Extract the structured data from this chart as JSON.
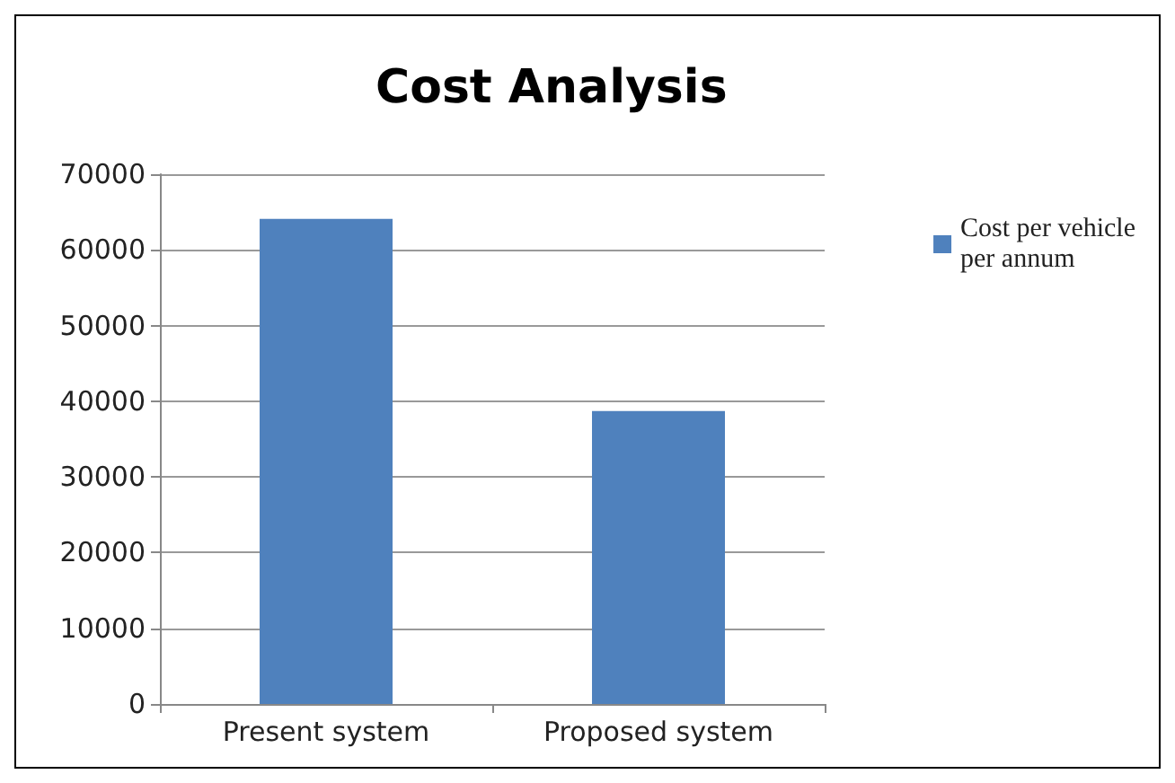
{
  "chart_data": {
    "type": "bar",
    "title": "Cost Analysis",
    "categories": [
      "Present system",
      "Proposed system"
    ],
    "series": [
      {
        "name": "Cost per vehicle\nper annum",
        "color": "#4f81bd",
        "values": [
          64100,
          38700
        ]
      }
    ],
    "ylim": [
      0,
      70000
    ],
    "yticks": [
      0,
      10000,
      20000,
      30000,
      40000,
      50000,
      60000,
      70000
    ],
    "grid": "y",
    "legend": "top right"
  }
}
